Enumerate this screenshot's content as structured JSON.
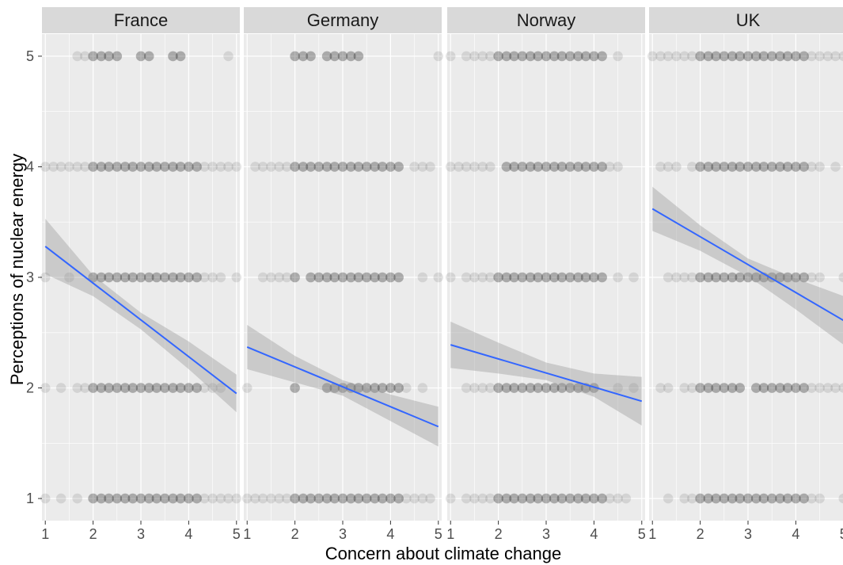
{
  "chart_data": {
    "type": "scatter",
    "facet_variable": "country",
    "panels": [
      "France",
      "Germany",
      "Norway",
      "UK"
    ],
    "xlabel": "Concern about climate change",
    "ylabel": "Perceptions of nuclear energy",
    "xlim": [
      0.93,
      5.07
    ],
    "ylim": [
      0.8,
      5.2
    ],
    "x_ticks": [
      1,
      2,
      3,
      4,
      5
    ],
    "y_ticks": [
      1,
      2,
      3,
      4,
      5
    ],
    "grid": true,
    "point_color": "#000000",
    "point_alpha": 0.1,
    "fit_color": "#3366ff",
    "ribbon_color": "#999999",
    "panel_background": "#ebebeb",
    "strip_background": "#d9d9d9",
    "points": {
      "France": {
        "1": [
          1,
          1.33,
          1.67,
          2,
          2.17,
          2.33,
          2.5,
          2.67,
          2.83,
          3,
          3.17,
          3.33,
          3.5,
          3.67,
          3.83,
          4,
          4.17,
          4.33,
          4.5,
          4.67,
          4.83,
          5
        ],
        "2": [
          1,
          1.33,
          1.67,
          1.83,
          2,
          2.17,
          2.33,
          2.5,
          2.67,
          2.83,
          3,
          3.17,
          3.33,
          3.5,
          3.67,
          3.83,
          4,
          4.17,
          4.33,
          4.5,
          4.67
        ],
        "3": [
          1,
          1.5,
          2,
          2.17,
          2.33,
          2.5,
          2.67,
          2.83,
          3,
          3.17,
          3.33,
          3.5,
          3.67,
          3.83,
          4,
          4.17,
          4.33,
          4.5,
          4.67,
          5
        ],
        "4": [
          1,
          1.17,
          1.33,
          1.5,
          1.67,
          1.83,
          2,
          2.17,
          2.33,
          2.5,
          2.67,
          2.83,
          3,
          3.17,
          3.33,
          3.5,
          3.67,
          3.83,
          4,
          4.17,
          4.33,
          4.5,
          4.67,
          4.83,
          5
        ],
        "5": [
          1.67,
          1.83,
          2,
          2.17,
          2.33,
          2.5,
          3,
          3.17,
          3.67,
          3.83,
          4.83
        ]
      },
      "Germany": {
        "1": [
          1,
          1.17,
          1.33,
          1.5,
          1.67,
          1.83,
          2,
          2.17,
          2.33,
          2.5,
          2.67,
          2.83,
          3,
          3.17,
          3.33,
          3.5,
          3.67,
          3.83,
          4,
          4.17,
          4.33,
          4.5,
          4.67,
          4.83
        ],
        "2": [
          1,
          2,
          2.67,
          2.83,
          3,
          3.17,
          3.33,
          3.5,
          3.67,
          3.83,
          4,
          4.17,
          4.33,
          4.67
        ],
        "3": [
          1.33,
          1.5,
          1.67,
          1.83,
          2,
          2.33,
          2.5,
          2.67,
          2.83,
          3,
          3.17,
          3.33,
          3.5,
          3.67,
          3.83,
          4,
          4.17,
          4.67,
          5
        ],
        "4": [
          1.17,
          1.33,
          1.5,
          1.67,
          1.83,
          2,
          2.17,
          2.33,
          2.5,
          2.67,
          2.83,
          3,
          3.17,
          3.33,
          3.5,
          3.67,
          3.83,
          4,
          4.17,
          4.5,
          4.67,
          4.83
        ],
        "5": [
          2,
          2.17,
          2.33,
          2.67,
          2.83,
          3,
          3.17,
          3.33,
          5
        ]
      },
      "Norway": {
        "1": [
          1,
          1.33,
          1.5,
          1.67,
          1.83,
          2,
          2.17,
          2.33,
          2.5,
          2.67,
          2.83,
          3,
          3.17,
          3.33,
          3.5,
          3.67,
          3.83,
          4,
          4.17,
          4.33,
          4.5,
          4.67
        ],
        "2": [
          1.33,
          1.5,
          1.67,
          1.83,
          2,
          2.17,
          2.33,
          2.5,
          2.67,
          2.83,
          3,
          3.17,
          3.33,
          3.5,
          3.67,
          3.83,
          4,
          4.5,
          4.83
        ],
        "3": [
          1,
          1.33,
          1.5,
          1.67,
          1.83,
          2,
          2.17,
          2.33,
          2.5,
          2.67,
          2.83,
          3,
          3.17,
          3.33,
          3.5,
          3.67,
          3.83,
          4,
          4.17,
          4.5,
          4.83
        ],
        "4": [
          1,
          1.17,
          1.33,
          1.5,
          1.67,
          1.83,
          2.17,
          2.33,
          2.5,
          2.67,
          2.83,
          3,
          3.17,
          3.33,
          3.5,
          3.67,
          3.83,
          4,
          4.17,
          4.33,
          4.5
        ],
        "5": [
          1,
          1.33,
          1.5,
          1.67,
          1.83,
          2,
          2.17,
          2.33,
          2.5,
          2.67,
          2.83,
          3,
          3.17,
          3.33,
          3.5,
          3.67,
          3.83,
          4,
          4.17,
          4.5
        ]
      },
      "UK": {
        "1": [
          1.33,
          1.67,
          1.83,
          2,
          2.17,
          2.33,
          2.5,
          2.67,
          2.83,
          3,
          3.17,
          3.33,
          3.5,
          3.67,
          3.83,
          4,
          4.17,
          4.33,
          4.5,
          5
        ],
        "2": [
          1.17,
          1.33,
          1.67,
          1.83,
          2,
          2.17,
          2.33,
          2.5,
          2.67,
          2.83,
          3.17,
          3.33,
          3.5,
          3.67,
          3.83,
          4,
          4.17,
          4.33,
          4.5,
          4.67,
          4.83,
          5
        ],
        "3": [
          1.33,
          1.5,
          1.67,
          1.83,
          2,
          2.17,
          2.33,
          2.5,
          2.67,
          2.83,
          3,
          3.17,
          3.33,
          3.5,
          3.67,
          3.83,
          4,
          4.17,
          4.33,
          4.5,
          5
        ],
        "4": [
          1.17,
          1.33,
          1.5,
          1.83,
          2,
          2.17,
          2.33,
          2.5,
          2.67,
          2.83,
          3,
          3.17,
          3.33,
          3.5,
          3.67,
          3.83,
          4,
          4.17,
          4.33,
          4.5,
          4.83
        ],
        "5": [
          1,
          1.17,
          1.33,
          1.5,
          1.67,
          1.83,
          2,
          2.17,
          2.33,
          2.5,
          2.67,
          2.83,
          3,
          3.17,
          3.33,
          3.5,
          3.67,
          3.83,
          4,
          4.17,
          4.33,
          4.5,
          4.67,
          4.83,
          5
        ]
      }
    },
    "fits": {
      "France": {
        "x": [
          1,
          5
        ],
        "y": [
          3.28,
          1.95
        ],
        "ci_lower": [
          [
            1,
            3.03
          ],
          [
            2,
            2.83
          ],
          [
            3,
            2.53
          ],
          [
            4,
            2.17
          ],
          [
            5,
            1.78
          ]
        ],
        "ci_upper": [
          [
            1,
            3.53
          ],
          [
            2,
            3.02
          ],
          [
            3,
            2.68
          ],
          [
            4,
            2.42
          ],
          [
            5,
            2.12
          ]
        ]
      },
      "Germany": {
        "x": [
          1,
          5
        ],
        "y": [
          2.37,
          1.65
        ],
        "ci_lower": [
          [
            1,
            2.17
          ],
          [
            2,
            2.05
          ],
          [
            3,
            1.93
          ],
          [
            4,
            1.7
          ],
          [
            5,
            1.47
          ]
        ],
        "ci_upper": [
          [
            1,
            2.57
          ],
          [
            2,
            2.29
          ],
          [
            3,
            2.07
          ],
          [
            4,
            1.94
          ],
          [
            5,
            1.83
          ]
        ]
      },
      "Norway": {
        "x": [
          1,
          5
        ],
        "y": [
          2.39,
          1.88
        ],
        "ci_lower": [
          [
            1,
            2.18
          ],
          [
            2,
            2.13
          ],
          [
            3,
            2.07
          ],
          [
            4,
            1.92
          ],
          [
            5,
            1.66
          ]
        ],
        "ci_upper": [
          [
            1,
            2.6
          ],
          [
            2,
            2.41
          ],
          [
            3,
            2.23
          ],
          [
            4,
            2.13
          ],
          [
            5,
            2.1
          ]
        ]
      },
      "UK": {
        "x": [
          1,
          5
        ],
        "y": [
          3.62,
          2.61
        ],
        "ci_lower": [
          [
            1,
            3.42
          ],
          [
            2,
            3.24
          ],
          [
            3,
            3.01
          ],
          [
            4,
            2.71
          ],
          [
            5,
            2.39
          ]
        ],
        "ci_upper": [
          [
            1,
            3.82
          ],
          [
            2,
            3.47
          ],
          [
            3,
            3.17
          ],
          [
            4,
            2.99
          ],
          [
            5,
            2.83
          ]
        ]
      }
    }
  }
}
